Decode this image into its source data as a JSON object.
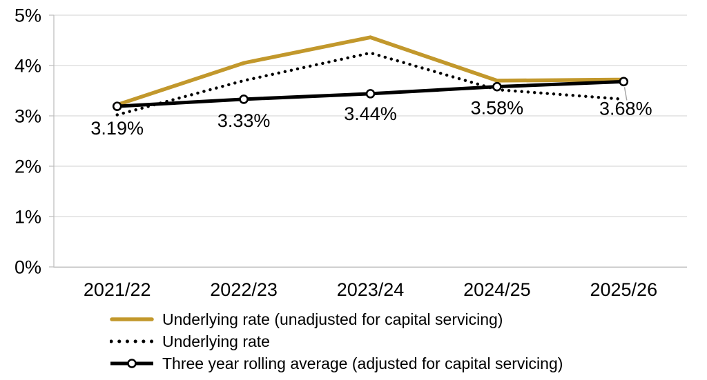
{
  "chart_data": {
    "type": "line",
    "title": "",
    "xlabel": "",
    "ylabel": "",
    "categories": [
      "2021/22",
      "2022/23",
      "2023/24",
      "2024/25",
      "2025/26"
    ],
    "series": [
      {
        "name": "Underlying rate (unadjusted for capital servicing)",
        "style": "solid",
        "color": "#C2982C",
        "values": [
          3.22,
          4.05,
          4.56,
          3.7,
          3.72
        ]
      },
      {
        "name": "Underlying rate",
        "style": "dotted",
        "color": "#000000",
        "values": [
          3.02,
          3.7,
          4.25,
          3.52,
          3.33
        ]
      },
      {
        "name": "Three year rolling average (adjusted for capital servicing)",
        "style": "solid-markers",
        "color": "#000000",
        "values": [
          3.19,
          3.33,
          3.44,
          3.58,
          3.68
        ],
        "data_labels": [
          "3.19%",
          "3.33%",
          "3.44%",
          "3.58%",
          "3.68%"
        ],
        "label_dy": [
          41,
          40,
          38,
          40,
          48
        ],
        "last_label_leader": true
      }
    ],
    "ylim": [
      0,
      5
    ],
    "y_ticks": [
      "0%",
      "1%",
      "2%",
      "3%",
      "4%",
      "5%"
    ],
    "grid": true,
    "legend_position": "bottom-left"
  },
  "colors": {
    "gridline": "#D9D9D9",
    "axis": "#BFBFBF",
    "leader": "#A6A6A6",
    "marker_fill": "#FFFFFF",
    "text": "#000000"
  }
}
